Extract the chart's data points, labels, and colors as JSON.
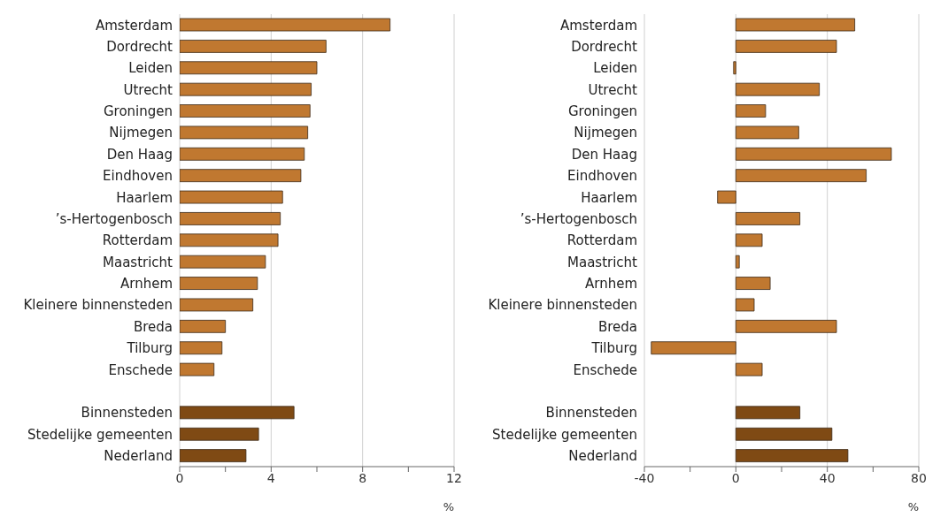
{
  "chart_data": [
    {
      "type": "bar",
      "orientation": "horizontal",
      "xlabel": "%",
      "categories": [
        "Amsterdam",
        "Dordrecht",
        "Leiden",
        "Utrecht",
        "Groningen",
        "Nijmegen",
        "Den Haag",
        "Eindhoven",
        "Haarlem",
        "’s-Hertogenbosch",
        "Rotterdam",
        "Maastricht",
        "Arnhem",
        "Kleinere binnensteden",
        "Breda",
        "Tilburg",
        "Enschede",
        null,
        "Binnensteden",
        "Stedelijke gemeenten",
        "Nederland"
      ],
      "values": [
        9.2,
        6.4,
        6.0,
        5.75,
        5.7,
        5.6,
        5.45,
        5.3,
        4.5,
        4.4,
        4.3,
        3.75,
        3.4,
        3.2,
        2.0,
        1.85,
        1.5,
        null,
        5.0,
        3.45,
        2.9
      ],
      "colors": [
        "#c07830",
        "#c07830",
        "#c07830",
        "#c07830",
        "#c07830",
        "#c07830",
        "#c07830",
        "#c07830",
        "#c07830",
        "#c07830",
        "#c07830",
        "#c07830",
        "#c07830",
        "#c07830",
        "#c07830",
        "#c07830",
        "#c07830",
        "#c07830",
        "#7f4a14",
        "#7f4a14",
        "#7f4a14"
      ],
      "xlim": [
        0,
        12
      ],
      "xticks": [
        0,
        {
          "value": 2,
          "label": null
        },
        4,
        {
          "value": 6,
          "label": null
        },
        8,
        {
          "value": 10,
          "label": null
        },
        12
      ],
      "grid": "x"
    },
    {
      "type": "bar",
      "orientation": "horizontal",
      "xlabel": "%",
      "categories": [
        "Amsterdam",
        "Dordrecht",
        "Leiden",
        "Utrecht",
        "Groningen",
        "Nijmegen",
        "Den Haag",
        "Eindhoven",
        "Haarlem",
        "’s-Hertogenbosch",
        "Rotterdam",
        "Maastricht",
        "Arnhem",
        "Kleinere binnensteden",
        "Breda",
        "Tilburg",
        "Enschede",
        null,
        "Binnensteden",
        "Stedelijke gemeenten",
        "Nederland"
      ],
      "values": [
        52,
        44,
        -1,
        36.5,
        13,
        27.5,
        68,
        57,
        -8,
        28,
        11.5,
        1.5,
        15,
        8,
        44,
        -37,
        11.5,
        null,
        28,
        42,
        49
      ],
      "colors": [
        "#c07830",
        "#c07830",
        "#c07830",
        "#c07830",
        "#c07830",
        "#c07830",
        "#c07830",
        "#c07830",
        "#c07830",
        "#c07830",
        "#c07830",
        "#c07830",
        "#c07830",
        "#c07830",
        "#c07830",
        "#c07830",
        "#c07830",
        "#c07830",
        "#7f4a14",
        "#7f4a14",
        "#7f4a14"
      ],
      "xlim": [
        -40,
        80
      ],
      "xticks": [
        -40,
        {
          "value": -20,
          "label": null
        },
        0,
        {
          "value": 20,
          "label": null
        },
        40,
        {
          "value": 60,
          "label": null
        },
        80
      ],
      "grid": "x"
    }
  ]
}
